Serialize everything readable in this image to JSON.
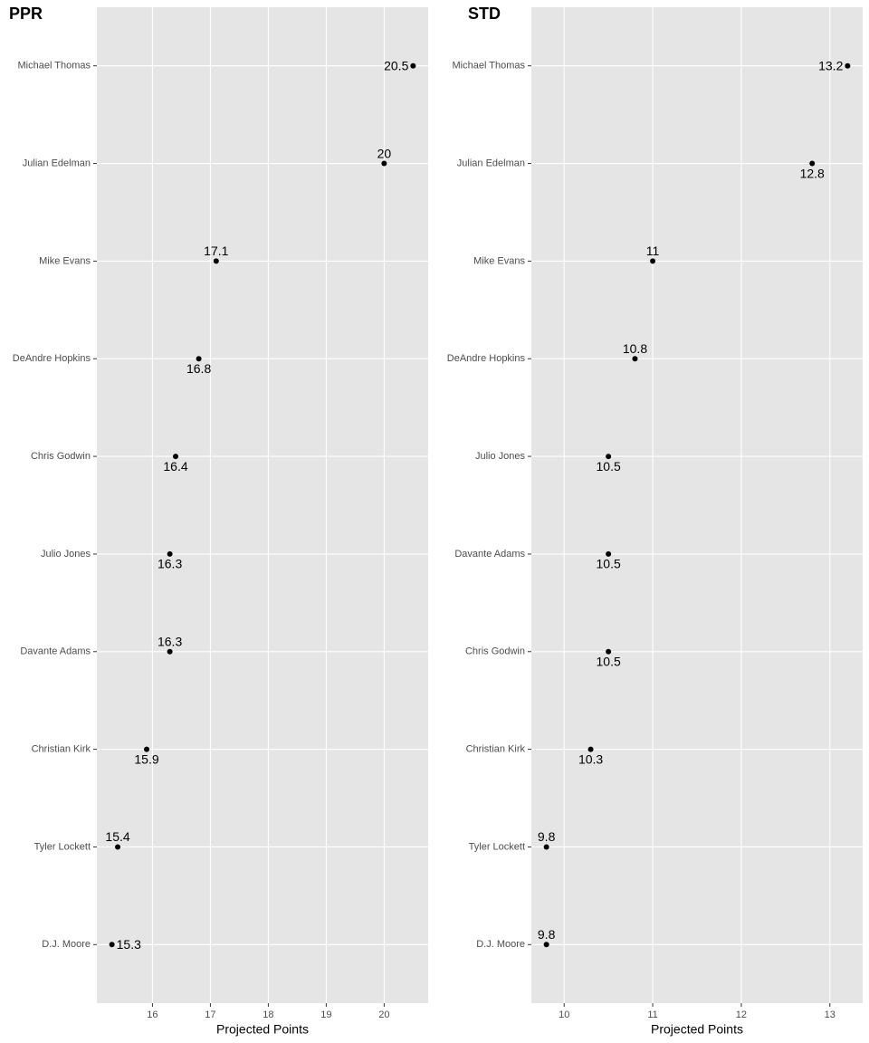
{
  "chart_data": [
    {
      "type": "dot",
      "title": "PPR",
      "x_label": "Projected Points",
      "categories": [
        "Michael Thomas",
        "Julian Edelman",
        "Mike Evans",
        "DeAndre Hopkins",
        "Chris Godwin",
        "Julio Jones",
        "Davante Adams",
        "Christian Kirk",
        "Tyler Lockett",
        "D.J. Moore"
      ],
      "values": [
        20.5,
        20,
        17.1,
        16.8,
        16.4,
        16.3,
        16.3,
        15.9,
        15.4,
        15.3
      ],
      "color": "#000000",
      "xlim": [
        15.04,
        20.76
      ],
      "xticks": [
        16,
        17,
        18,
        19,
        20
      ],
      "grid": true
    },
    {
      "type": "dot",
      "title": "STD",
      "x_label": "Projected Points",
      "categories": [
        "Michael Thomas",
        "Julian Edelman",
        "Mike Evans",
        "DeAndre Hopkins",
        "Julio Jones",
        "Davante Adams",
        "Chris Godwin",
        "Christian Kirk",
        "Tyler Lockett",
        "D.J. Moore"
      ],
      "values": [
        13.2,
        12.8,
        11,
        10.8,
        10.5,
        10.5,
        10.5,
        10.3,
        9.8,
        9.8
      ],
      "color": "#000000",
      "xlim": [
        9.63,
        13.37
      ],
      "xticks": [
        10,
        11,
        12,
        13
      ],
      "grid": true
    }
  ]
}
